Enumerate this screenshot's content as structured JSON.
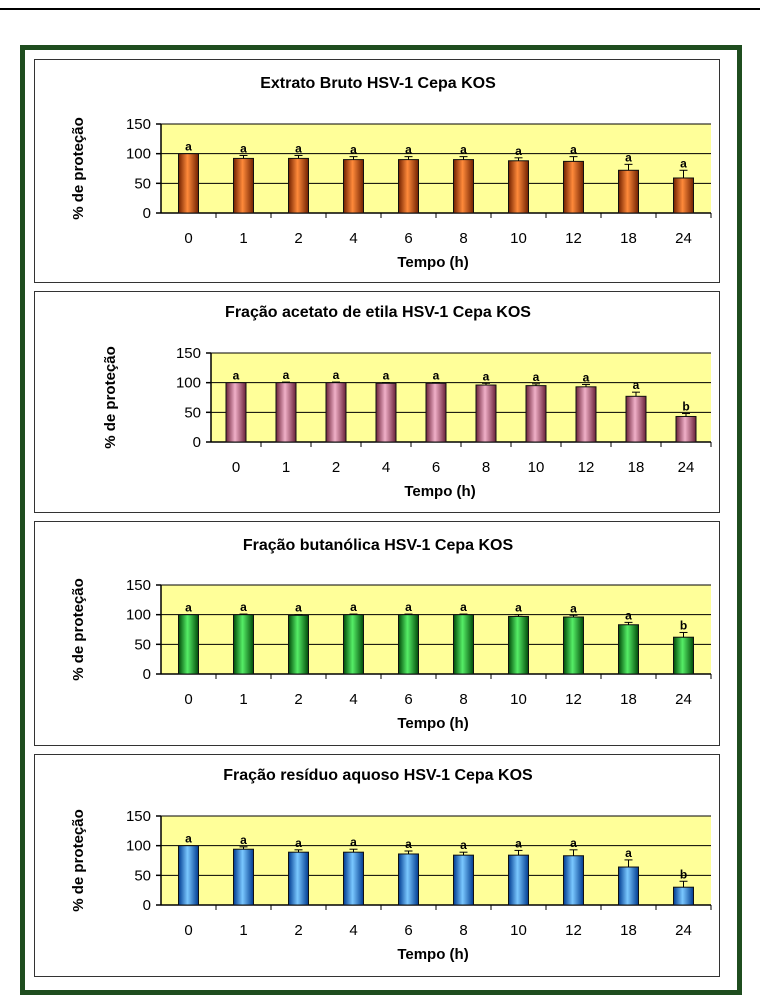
{
  "chart_data": [
    {
      "type": "bar",
      "title": "Extrato Bruto  HSV-1 Cepa KOS",
      "xlabel": "Tempo (h)",
      "ylabel": "% de proteção",
      "ylim": [
        0,
        150
      ],
      "yticks": [
        0,
        50,
        100,
        150
      ],
      "categories": [
        "0",
        "1",
        "2",
        "4",
        "6",
        "8",
        "10",
        "12",
        "18",
        "24"
      ],
      "values": [
        100,
        92,
        92,
        90,
        90,
        90,
        88,
        87,
        72,
        59
      ],
      "errors": [
        0,
        5,
        5,
        5,
        5,
        5,
        5,
        8,
        10,
        13
      ],
      "significance": [
        "a",
        "a",
        "a",
        "a",
        "a",
        "a",
        "a",
        "a",
        "a",
        "a"
      ],
      "color": "#c0450c",
      "light": "#ff8a3a",
      "dark": "#702000"
    },
    {
      "type": "bar",
      "title": "Fração acetato de etila HSV-1 Cepa KOS",
      "xlabel": "Tempo (h)",
      "ylabel": "% de proteção",
      "ylim": [
        0,
        150
      ],
      "yticks": [
        0,
        50,
        100,
        150
      ],
      "categories": [
        "0",
        "1",
        "2",
        "4",
        "6",
        "8",
        "10",
        "12",
        "18",
        "24"
      ],
      "values": [
        100,
        100,
        100,
        99,
        99,
        96,
        95,
        93,
        77,
        43
      ],
      "errors": [
        0,
        1,
        1,
        1,
        1,
        3,
        3,
        4,
        7,
        5
      ],
      "significance": [
        "a",
        "a",
        "a",
        "a",
        "a",
        "a",
        "a",
        "a",
        "a",
        "b"
      ],
      "color": "#c05878",
      "light": "#f0b0c8",
      "dark": "#6a2038"
    },
    {
      "type": "bar",
      "title": "Fração butanólica  HSV-1 Cepa KOS",
      "xlabel": "Tempo (h)",
      "ylabel": "% de proteção",
      "ylim": [
        0,
        150
      ],
      "yticks": [
        0,
        50,
        100,
        150
      ],
      "categories": [
        "0",
        "1",
        "2",
        "4",
        "6",
        "8",
        "10",
        "12",
        "18",
        "24"
      ],
      "values": [
        100,
        100,
        99,
        100,
        100,
        100,
        97,
        96,
        83,
        62
      ],
      "errors": [
        0,
        1,
        1,
        1,
        1,
        1,
        3,
        3,
        4,
        8
      ],
      "significance": [
        "a",
        "a",
        "a",
        "a",
        "a",
        "a",
        "a",
        "a",
        "a",
        "b"
      ],
      "color": "#0e9a1e",
      "light": "#55ee66",
      "dark": "#004a08"
    },
    {
      "type": "bar",
      "title": "Fração resíduo aquoso HSV-1 Cepa KOS",
      "xlabel": "Tempo (h)",
      "ylabel": "% de proteção",
      "ylim": [
        0,
        150
      ],
      "yticks": [
        0,
        50,
        100,
        150
      ],
      "categories": [
        "0",
        "1",
        "2",
        "4",
        "6",
        "8",
        "10",
        "12",
        "18",
        "24"
      ],
      "values": [
        100,
        94,
        89,
        89,
        86,
        84,
        84,
        83,
        64,
        30
      ],
      "errors": [
        0,
        4,
        4,
        5,
        5,
        5,
        8,
        10,
        12,
        10
      ],
      "significance": [
        "a",
        "a",
        "a",
        "a",
        "a",
        "a",
        "a",
        "a",
        "a",
        "b"
      ],
      "color": "#1a78e8",
      "light": "#7ac8ff",
      "dark": "#003a90"
    }
  ]
}
